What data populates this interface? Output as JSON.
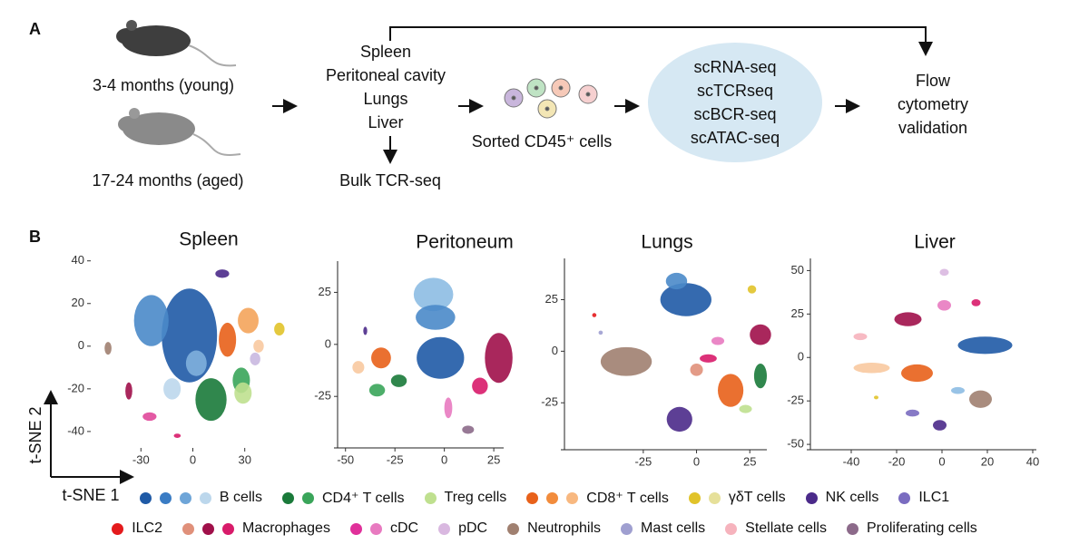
{
  "panel_a": {
    "label": "A",
    "groups": [
      "3-4 months (young)",
      "17-24 months (aged)"
    ],
    "tissues": [
      "Spleen",
      "Peritoneal cavity",
      "Lungs",
      "Liver"
    ],
    "bulk": "Bulk TCR-seq",
    "sorted": "Sorted CD45⁺ cells",
    "assays": [
      "scRNA-seq",
      "scTCRseq",
      "scBCR-seq",
      "scATAC-seq"
    ],
    "validation": [
      "Flow",
      "cytometry",
      "validation"
    ]
  },
  "panel_b": {
    "label": "B",
    "x_label": "t-SNE 1",
    "y_label": "t-SNE 2"
  },
  "chart_data": [
    {
      "type": "scatter",
      "title": "Spleen",
      "axis_lines": false,
      "xlim": [
        -59,
        59
      ],
      "ylim": [
        -46,
        42
      ],
      "xticks": [
        -30,
        0,
        30
      ],
      "yticks": [
        -40,
        -20,
        0,
        20,
        40
      ],
      "clusters": [
        {
          "x": -2,
          "y": 5,
          "sx": 16,
          "sy": 22,
          "color": "#1f5aa6"
        },
        {
          "x": -24,
          "y": 12,
          "sx": 10,
          "sy": 12,
          "color": "#4a8ac9"
        },
        {
          "x": 2,
          "y": -8,
          "sx": 6,
          "sy": 6,
          "color": "#7fb0dd"
        },
        {
          "x": -12,
          "y": -20,
          "sx": 5,
          "sy": 5,
          "color": "#bcd7ec"
        },
        {
          "x": 20,
          "y": 3,
          "sx": 5,
          "sy": 8,
          "color": "#e8611a"
        },
        {
          "x": 32,
          "y": 12,
          "sx": 6,
          "sy": 6,
          "color": "#f4a45b"
        },
        {
          "x": 38,
          "y": 0,
          "sx": 3,
          "sy": 3,
          "color": "#f8c9a0"
        },
        {
          "x": 50,
          "y": 8,
          "sx": 3,
          "sy": 3,
          "color": "#e1c32a"
        },
        {
          "x": 10.5,
          "y": -25,
          "sx": 9,
          "sy": 10,
          "color": "#1a7a3a"
        },
        {
          "x": 28,
          "y": -16,
          "sx": 5,
          "sy": 6,
          "color": "#3aa55a"
        },
        {
          "x": 29,
          "y": -22,
          "sx": 5,
          "sy": 5,
          "color": "#bfe08f"
        },
        {
          "x": 17,
          "y": 34,
          "sx": 4,
          "sy": 2,
          "color": "#4b2a8a"
        },
        {
          "x": -49,
          "y": -1,
          "sx": 2,
          "sy": 3,
          "color": "#a08070"
        },
        {
          "x": -37,
          "y": -21,
          "sx": 2,
          "sy": 4,
          "color": "#a0104a"
        },
        {
          "x": -25,
          "y": -33,
          "sx": 4,
          "sy": 2,
          "color": "#e0489a"
        },
        {
          "x": -9,
          "y": -42,
          "sx": 2,
          "sy": 1,
          "color": "#d81b6a"
        },
        {
          "x": 36,
          "y": -6,
          "sx": 3,
          "sy": 3,
          "color": "#c9b8e0"
        }
      ]
    },
    {
      "type": "scatter",
      "title": "Peritoneum",
      "axis_lines": true,
      "xlim": [
        -54,
        30
      ],
      "ylim": [
        -48,
        40
      ],
      "xticks": [
        -50,
        -25,
        0,
        25
      ],
      "yticks": [
        -25,
        0,
        25
      ],
      "clusters": [
        {
          "x": -5.5,
          "y": 24,
          "sx": 10,
          "sy": 8,
          "color": "#8dbde3"
        },
        {
          "x": -4.5,
          "y": 13,
          "sx": 10,
          "sy": 6,
          "color": "#4a8ac9"
        },
        {
          "x": -2,
          "y": -6.5,
          "sx": 12,
          "sy": 10,
          "color": "#1f5aa6"
        },
        {
          "x": 27.5,
          "y": -6.5,
          "sx": 7,
          "sy": 12,
          "color": "#a0104a"
        },
        {
          "x": 18,
          "y": -20,
          "sx": 4,
          "sy": 4,
          "color": "#d81b6a"
        },
        {
          "x": -32,
          "y": -6.5,
          "sx": 5,
          "sy": 5,
          "color": "#e8611a"
        },
        {
          "x": -43.5,
          "y": -11,
          "sx": 3,
          "sy": 3,
          "color": "#f8c9a0"
        },
        {
          "x": -23,
          "y": -17.5,
          "sx": 4,
          "sy": 3,
          "color": "#1a7a3a"
        },
        {
          "x": -34,
          "y": -22,
          "sx": 4,
          "sy": 3,
          "color": "#3aa55a"
        },
        {
          "x": 2,
          "y": -30.5,
          "sx": 2,
          "sy": 5,
          "color": "#e87ac0"
        },
        {
          "x": 12,
          "y": -41,
          "sx": 3,
          "sy": 2,
          "color": "#8c6a8a"
        },
        {
          "x": -40,
          "y": 6.5,
          "sx": 1,
          "sy": 2,
          "color": "#4b2a8a"
        }
      ]
    },
    {
      "type": "scatter",
      "title": "Lungs",
      "axis_lines": true,
      "xlim": [
        -62,
        33
      ],
      "ylim": [
        -46,
        45
      ],
      "xticks": [
        -25,
        0,
        25
      ],
      "yticks": [
        -25,
        0,
        25
      ],
      "clusters": [
        {
          "x": -5,
          "y": 25,
          "sx": 12,
          "sy": 8,
          "color": "#1f5aa6"
        },
        {
          "x": -9.4,
          "y": 34,
          "sx": 5,
          "sy": 4,
          "color": "#4a8ac9"
        },
        {
          "x": -33,
          "y": -5,
          "sx": 12,
          "sy": 7,
          "color": "#a08070"
        },
        {
          "x": 30,
          "y": 8,
          "sx": 5,
          "sy": 5,
          "color": "#a0104a"
        },
        {
          "x": 26,
          "y": 30,
          "sx": 2,
          "sy": 2,
          "color": "#e1c32a"
        },
        {
          "x": 16,
          "y": -19,
          "sx": 6,
          "sy": 8,
          "color": "#e8611a"
        },
        {
          "x": 30,
          "y": -12,
          "sx": 3,
          "sy": 6,
          "color": "#1a7a3a"
        },
        {
          "x": -8,
          "y": -33,
          "sx": 6,
          "sy": 6,
          "color": "#4b2a8a"
        },
        {
          "x": 0,
          "y": -9,
          "sx": 3,
          "sy": 3,
          "color": "#e0907a"
        },
        {
          "x": 5.5,
          "y": -3.5,
          "sx": 4,
          "sy": 2,
          "color": "#d81b6a"
        },
        {
          "x": 10,
          "y": 5,
          "sx": 3,
          "sy": 2,
          "color": "#e87ac0"
        },
        {
          "x": 23,
          "y": -28,
          "sx": 3,
          "sy": 2,
          "color": "#bfe08f"
        },
        {
          "x": -48,
          "y": 17.5,
          "sx": 1,
          "sy": 1,
          "color": "#e41a1c"
        },
        {
          "x": -45,
          "y": 9,
          "sx": 1,
          "sy": 1,
          "color": "#9f9fd0"
        }
      ]
    },
    {
      "type": "scatter",
      "title": "Liver",
      "axis_lines": true,
      "xlim": [
        -58,
        41.6
      ],
      "ylim": [
        -51,
        57
      ],
      "xticks": [
        -40,
        -20,
        0,
        20,
        40
      ],
      "yticks": [
        -50,
        -25,
        0,
        25,
        50
      ],
      "clusters": [
        {
          "x": 19,
          "y": 7,
          "sx": 12,
          "sy": 5,
          "color": "#1f5aa6"
        },
        {
          "x": -15,
          "y": 22,
          "sx": 6,
          "sy": 4,
          "color": "#a0104a"
        },
        {
          "x": -11,
          "y": -9,
          "sx": 7,
          "sy": 5,
          "color": "#e8611a"
        },
        {
          "x": -31,
          "y": -6,
          "sx": 8,
          "sy": 3,
          "color": "#f8c9a0"
        },
        {
          "x": -36,
          "y": 12,
          "sx": 3,
          "sy": 2,
          "color": "#f6b3bd"
        },
        {
          "x": 17,
          "y": -24,
          "sx": 5,
          "sy": 5,
          "color": "#a08070"
        },
        {
          "x": -1,
          "y": -39,
          "sx": 3,
          "sy": 3,
          "color": "#4b2a8a"
        },
        {
          "x": -13,
          "y": -32,
          "sx": 3,
          "sy": 2,
          "color": "#7a6cc0"
        },
        {
          "x": 1,
          "y": 49,
          "sx": 2,
          "sy": 2,
          "color": "#d9b8e0"
        },
        {
          "x": 1,
          "y": 30,
          "sx": 3,
          "sy": 3,
          "color": "#e87ac0"
        },
        {
          "x": 15,
          "y": 31.5,
          "sx": 2,
          "sy": 2,
          "color": "#d81b6a"
        },
        {
          "x": -29,
          "y": -23,
          "sx": 1,
          "sy": 1,
          "color": "#e1c32a"
        },
        {
          "x": 7,
          "y": -19,
          "sx": 3,
          "sy": 2,
          "color": "#8dbde3"
        }
      ]
    }
  ],
  "legend": [
    [
      {
        "name": "B cells",
        "colors": [
          "#1f5aa6",
          "#3a7cc4",
          "#6ea5d8",
          "#bcd7ec"
        ]
      },
      {
        "name": "CD4⁺ T cells",
        "colors": [
          "#1a7a3a",
          "#3aa55a"
        ]
      },
      {
        "name": "Treg cells",
        "colors": [
          "#bfe08f"
        ]
      },
      {
        "name": "CD8⁺ T cells",
        "colors": [
          "#e8611a",
          "#f28c3c",
          "#f8b880"
        ]
      },
      {
        "name": "γδT cells",
        "colors": [
          "#e1c32a",
          "#e6e09a"
        ]
      },
      {
        "name": "NK cells",
        "colors": [
          "#4b2a8a"
        ]
      },
      {
        "name": "ILC1",
        "colors": [
          "#7a6cc0"
        ]
      }
    ],
    [
      {
        "name": "ILC2",
        "colors": [
          "#e41a1c"
        ]
      },
      {
        "name": "Macrophages",
        "colors": [
          "#e0907a",
          "#a0104a",
          "#d81b6a"
        ]
      },
      {
        "name": "cDC",
        "colors": [
          "#e0309a",
          "#e87ac0"
        ]
      },
      {
        "name": "pDC",
        "colors": [
          "#d9b8e0"
        ]
      },
      {
        "name": "Neutrophils",
        "colors": [
          "#a08070"
        ]
      },
      {
        "name": "Mast cells",
        "colors": [
          "#9f9fd0"
        ]
      },
      {
        "name": "Stellate cells",
        "colors": [
          "#f6b3bd"
        ]
      },
      {
        "name": "Proliferating cells",
        "colors": [
          "#8c6a8a"
        ]
      }
    ]
  ]
}
